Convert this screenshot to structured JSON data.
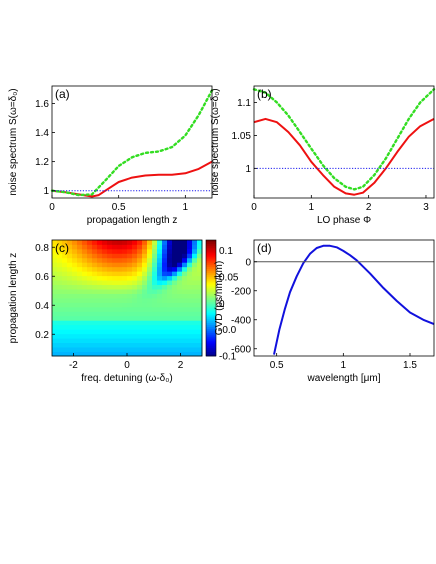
{
  "chart_data": [
    {
      "panel": "(a)",
      "type": "line",
      "xlabel": "propagation length z",
      "ylabel": "noise spectrum S(ω=δ₀)",
      "xlim": [
        0,
        1.2
      ],
      "ylim": [
        0.95,
        1.72
      ],
      "xticks": [
        "0",
        "0.5",
        "1"
      ],
      "yticks": [
        "1",
        "1.2",
        "1.4",
        "1.6"
      ],
      "series": [
        {
          "style": "solid",
          "color": "#ee1111",
          "x": [
            0,
            0.1,
            0.2,
            0.3,
            0.35,
            0.4,
            0.5,
            0.6,
            0.7,
            0.8,
            0.9,
            1.0,
            1.1,
            1.2
          ],
          "y": [
            1.0,
            0.99,
            0.975,
            0.96,
            0.97,
            1.0,
            1.06,
            1.09,
            1.105,
            1.11,
            1.11,
            1.12,
            1.15,
            1.2
          ]
        },
        {
          "style": "dotted",
          "color": "#33dd22",
          "x": [
            0,
            0.1,
            0.2,
            0.3,
            0.4,
            0.5,
            0.6,
            0.7,
            0.8,
            0.9,
            1.0,
            1.1,
            1.2
          ],
          "y": [
            1.0,
            0.99,
            0.97,
            0.975,
            1.07,
            1.17,
            1.23,
            1.26,
            1.27,
            1.3,
            1.38,
            1.52,
            1.69
          ]
        },
        {
          "style": "dotted",
          "color": "#1a1aee",
          "x": [
            0,
            1.2
          ],
          "y": [
            1.0,
            1.0
          ]
        }
      ]
    },
    {
      "panel": "(b)",
      "type": "line",
      "xlabel": "LO phase Φ",
      "ylabel": "noise spectrum S(ω=δ₀)",
      "xlim": [
        0,
        3.14
      ],
      "ylim": [
        0.955,
        1.125
      ],
      "xticks": [
        "0",
        "1",
        "2",
        "3"
      ],
      "yticks": [
        "1",
        "1.05",
        "1.1"
      ],
      "series": [
        {
          "style": "solid",
          "color": "#ee1111",
          "x": [
            0,
            0.2,
            0.4,
            0.6,
            0.8,
            1.0,
            1.2,
            1.4,
            1.6,
            1.75,
            1.9,
            2.1,
            2.3,
            2.5,
            2.7,
            2.9,
            3.14
          ],
          "y": [
            1.07,
            1.075,
            1.07,
            1.055,
            1.035,
            1.01,
            0.99,
            0.972,
            0.962,
            0.96,
            0.963,
            0.978,
            1.0,
            1.025,
            1.048,
            1.064,
            1.075
          ]
        },
        {
          "style": "dotted",
          "color": "#33dd22",
          "x": [
            0,
            0.2,
            0.4,
            0.6,
            0.8,
            1.0,
            1.2,
            1.4,
            1.6,
            1.75,
            1.9,
            2.1,
            2.3,
            2.5,
            2.7,
            2.9,
            3.14
          ],
          "y": [
            1.12,
            1.115,
            1.1,
            1.08,
            1.055,
            1.03,
            1.005,
            0.985,
            0.972,
            0.968,
            0.972,
            0.99,
            1.015,
            1.045,
            1.075,
            1.1,
            1.12
          ]
        },
        {
          "style": "dotted",
          "color": "#1a1aee",
          "x": [
            0,
            3.14
          ],
          "y": [
            1.0,
            1.0
          ]
        }
      ]
    },
    {
      "panel": "(c)",
      "type": "heatmap",
      "xlabel": "freq. detuning (ω-δ₀)",
      "ylabel": "propagation length z",
      "xlim": [
        -2.8,
        2.8
      ],
      "ylim": [
        0.05,
        0.85
      ],
      "xticks": [
        "-2",
        "0",
        "2"
      ],
      "yticks": [
        "0.2",
        "0.4",
        "0.6",
        "0.8"
      ],
      "colorbar_ticks": [
        "0.1",
        "0.05",
        "0",
        "-0.0",
        "-0.1"
      ],
      "crange": [
        -0.1,
        0.12
      ]
    },
    {
      "panel": "(d)",
      "type": "line",
      "xlabel": "wavelength [μm]",
      "ylabel": "GVD (ps/nm/km)",
      "xlim": [
        0.33,
        1.68
      ],
      "ylim": [
        -650,
        150
      ],
      "xticks": [
        "0.5",
        "1",
        "1.5"
      ],
      "yticks": [
        "0",
        "-200",
        "-400",
        "-600"
      ],
      "series": [
        {
          "style": "solid",
          "color": "#1111dd",
          "x": [
            0.48,
            0.52,
            0.56,
            0.6,
            0.65,
            0.7,
            0.75,
            0.8,
            0.85,
            0.9,
            0.95,
            1.0,
            1.05,
            1.1,
            1.2,
            1.3,
            1.4,
            1.5,
            1.6,
            1.68
          ],
          "y": [
            -640,
            -470,
            -330,
            -210,
            -100,
            -10,
            55,
            95,
            110,
            110,
            100,
            75,
            45,
            10,
            -80,
            -180,
            -270,
            -350,
            -400,
            -430
          ]
        },
        {
          "style": "solid",
          "color": "#555555",
          "x": [
            0.33,
            1.68
          ],
          "y": [
            0,
            0
          ]
        }
      ]
    }
  ]
}
